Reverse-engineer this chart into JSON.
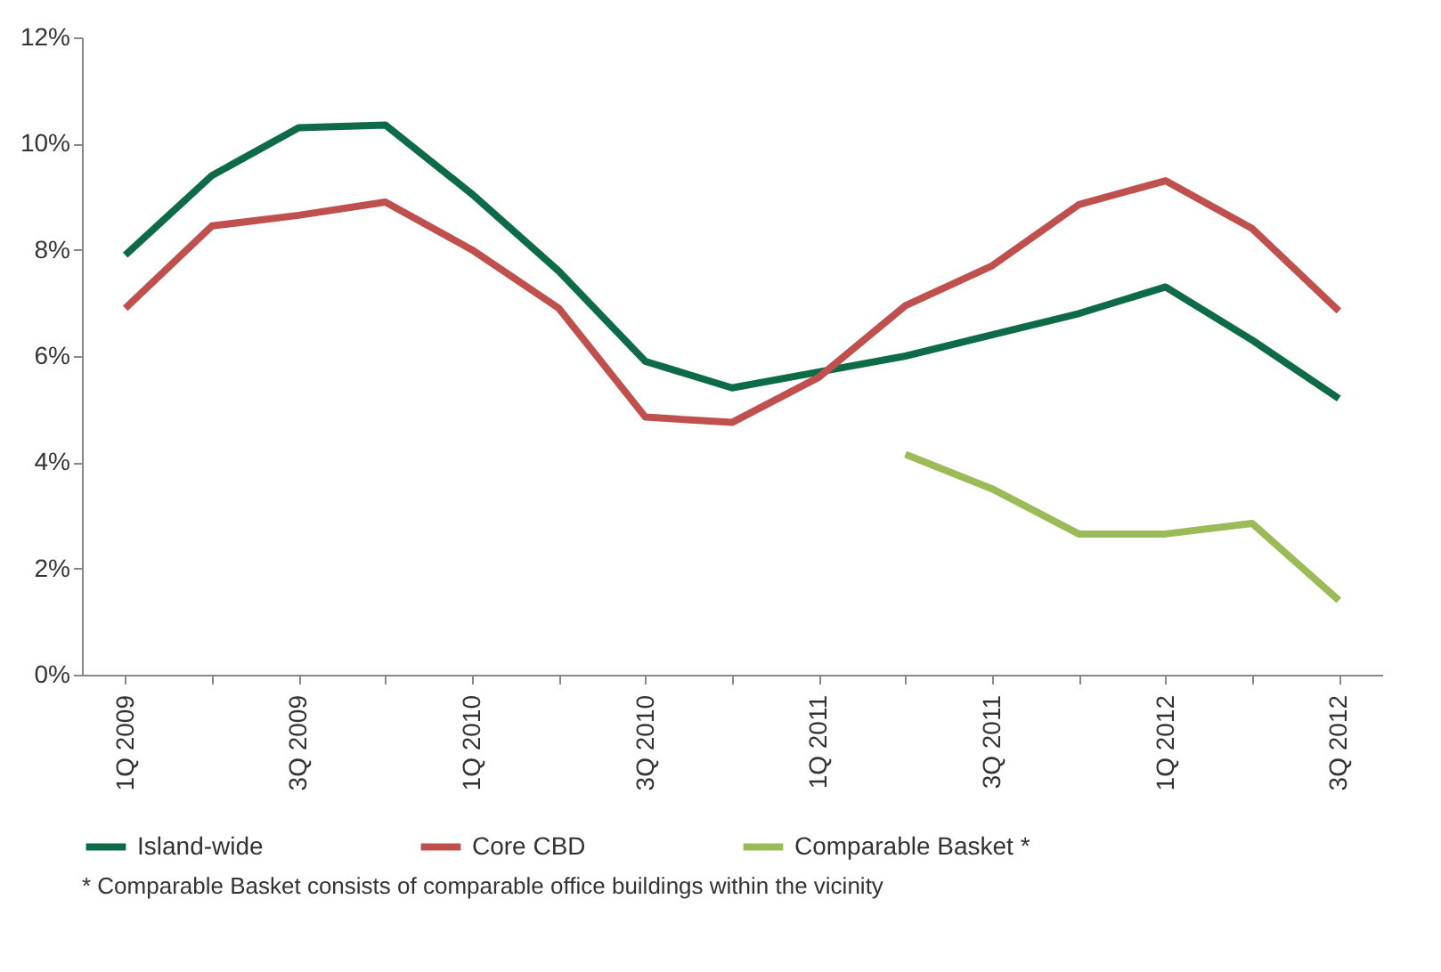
{
  "chart_data": {
    "type": "line",
    "categories": [
      "1Q 2009",
      null,
      "3Q 2009",
      null,
      "1Q 2010",
      null,
      "3Q 2010",
      null,
      "1Q 2011",
      null,
      "3Q 2011",
      null,
      "1Q 2012",
      null,
      "3Q 2012"
    ],
    "series": [
      {
        "name": "Island-wide",
        "color": "#0e6b47",
        "values": [
          7.9,
          9.4,
          10.3,
          10.35,
          9.05,
          7.6,
          5.9,
          5.4,
          5.7,
          6.0,
          6.4,
          6.8,
          7.3,
          6.3,
          5.2
        ]
      },
      {
        "name": "Core CBD",
        "color": "#c0504d",
        "values": [
          6.9,
          8.45,
          8.65,
          8.9,
          8.0,
          6.9,
          4.85,
          4.75,
          5.6,
          6.95,
          7.7,
          8.85,
          9.3,
          8.4,
          6.85
        ]
      },
      {
        "name": "Comparable Basket *",
        "color": "#9bbb59",
        "values": [
          null,
          null,
          null,
          null,
          null,
          null,
          null,
          null,
          null,
          4.15,
          3.5,
          2.65,
          2.65,
          2.85,
          1.4
        ]
      }
    ],
    "ylim": [
      0,
      12
    ],
    "yticks": [
      {
        "value": 0,
        "label": "0%"
      },
      {
        "value": 2,
        "label": "2%"
      },
      {
        "value": 4,
        "label": "4%"
      },
      {
        "value": 6,
        "label": "6%"
      },
      {
        "value": 8,
        "label": "8%"
      },
      {
        "value": 10,
        "label": "10%"
      },
      {
        "value": 12,
        "label": "12%"
      }
    ],
    "grid": false,
    "legend": "bottom",
    "marker": "none",
    "line_style": "solid",
    "annotations": [
      "* Comparable Basket consists of comparable office buildings within the vicinity"
    ]
  }
}
